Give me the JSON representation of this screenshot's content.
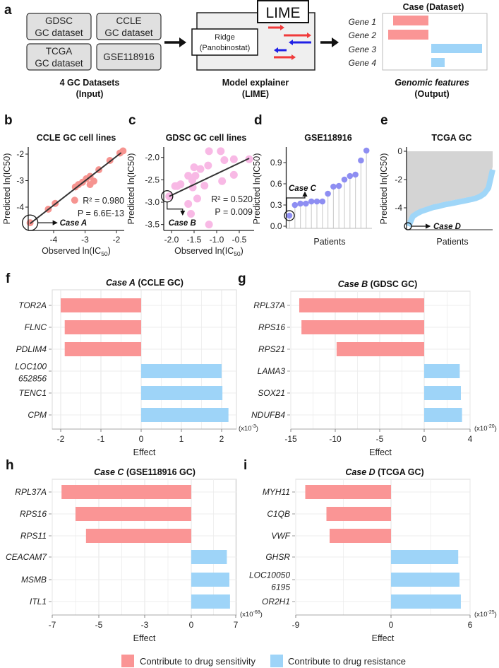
{
  "panel_labels": [
    "a",
    "b",
    "c",
    "d",
    "e",
    "f",
    "g",
    "h",
    "i"
  ],
  "panel_a": {
    "datasets": [
      [
        "GDSC",
        "GC dataset"
      ],
      [
        "CCLE",
        "GC dataset"
      ],
      [
        "TCGA",
        "GC dataset"
      ],
      [
        "GSE118916"
      ]
    ],
    "input_caption": [
      "4 GC Datasets",
      "(Input)"
    ],
    "lime_title": "LIME",
    "model_box": [
      "Ridge",
      "(Panobinostat)"
    ],
    "explainer_caption": [
      "Model explainer",
      "(LIME)"
    ],
    "output_title": "Case (Dataset)",
    "output_genes": [
      "Gene 1",
      "Gene 2",
      "Gene 3",
      "Gene 4"
    ],
    "output_caption": [
      "Genomic features",
      "(Output)"
    ]
  },
  "legend": {
    "sensitivity": "Contribute to drug sensitivity",
    "resistance": "Contribute to drug resistance"
  },
  "colors": {
    "sensitivity": "#fa9595",
    "resistance": "#9ed4f8",
    "ccle": "#f69490",
    "gdsc": "#f8b9e5",
    "gse": "#8e8ef2",
    "tcga": "#9fd6f8",
    "tcga_fill": "#d4d4d4"
  },
  "chart_data": [
    {
      "id": "b",
      "type": "scatter",
      "title": "CCLE GC cell lines",
      "xlabel": [
        "Observed ln(IC",
        "50",
        ")"
      ],
      "ylabel": "Predicted ln(IC50)",
      "xticks": [
        -4,
        -3,
        -2
      ],
      "yticks": [
        -2,
        -3,
        -4
      ],
      "xlim": [
        -4.85,
        -1.75
      ],
      "ylim": [
        -4.75,
        -1.8
      ],
      "points": [
        [
          -4.75,
          -4.59
        ],
        [
          -4.17,
          -4.08
        ],
        [
          -3.95,
          -3.86
        ],
        [
          -3.33,
          -3.74
        ],
        [
          -3.31,
          -3.24
        ],
        [
          -3.21,
          -3.15
        ],
        [
          -3.08,
          -3.06
        ],
        [
          -2.96,
          -2.93
        ],
        [
          -2.84,
          -2.84
        ],
        [
          -2.84,
          -3.15
        ],
        [
          -2.72,
          -3.02
        ],
        [
          -2.56,
          -2.59
        ],
        [
          -2.21,
          -2.24
        ],
        [
          -1.89,
          -1.96
        ],
        [
          -1.79,
          -1.88
        ]
      ],
      "fit": [
        [
          -4.75,
          -4.62
        ],
        [
          -1.85,
          -1.95
        ]
      ],
      "stats": [
        "R² = 0.980",
        "P = 6.6E-13"
      ],
      "case_label": "Case A"
    },
    {
      "id": "c",
      "type": "scatter",
      "title": "GDSC GC cell lines",
      "xlabel": [
        "Observed ln(IC",
        "50",
        ")"
      ],
      "ylabel": "Predicted ln(IC50)",
      "xticks": [
        "-2.0",
        "-1.5",
        "-1.0",
        "-0.5"
      ],
      "yticks": [
        "-2.0",
        "-2.5",
        "-3.0",
        "-3.5"
      ],
      "xlim": [
        -2.2,
        -0.25
      ],
      "ylim": [
        -3.6,
        -1.8
      ],
      "points": [
        [
          -2.05,
          -2.87
        ],
        [
          -1.92,
          -2.64
        ],
        [
          -1.87,
          -2.64
        ],
        [
          -1.8,
          -2.6
        ],
        [
          -1.63,
          -2.41
        ],
        [
          -1.63,
          -3.04
        ],
        [
          -1.57,
          -3.26
        ],
        [
          -1.5,
          -2.22
        ],
        [
          -1.47,
          -2.41
        ],
        [
          -1.54,
          -2.51
        ],
        [
          -1.53,
          -2.67
        ],
        [
          -1.43,
          -2.92
        ],
        [
          -1.36,
          -2.26
        ],
        [
          -1.27,
          -2.63
        ],
        [
          -1.19,
          -2.18
        ],
        [
          -1.17,
          -1.86
        ],
        [
          -1.17,
          -3.5
        ],
        [
          -0.91,
          -1.86
        ],
        [
          -0.83,
          -2.06
        ],
        [
          -0.88,
          -2.53
        ],
        [
          -0.62,
          -2.04
        ],
        [
          -0.62,
          -2.39
        ],
        [
          -0.28,
          -2.04
        ]
      ],
      "fit": [
        [
          -2.05,
          -2.87
        ],
        [
          -0.28,
          -2.02
        ]
      ],
      "stats": [
        "R² = 0.520",
        "P = 0.009"
      ],
      "case_label": "Case B"
    },
    {
      "id": "d",
      "type": "scatter",
      "title": "GSE118916",
      "xlabel": "Patients",
      "ylabel": "Predicted ln(IC50)",
      "yticks": [
        "0.0",
        "0.3",
        "0.6",
        "0.9"
      ],
      "ylim": [
        0,
        1.1
      ],
      "values": [
        0.15,
        0.3,
        0.32,
        0.32,
        0.35,
        0.35,
        0.35,
        0.46,
        0.56,
        0.57,
        0.66,
        0.71,
        0.73,
        0.93,
        1.07
      ],
      "case_label": "Case C"
    },
    {
      "id": "e",
      "type": "area",
      "title": "TCGA GC",
      "xlabel": "Patients",
      "ylabel": "Predicted ln(IC50)",
      "yticks": [
        0,
        -2,
        -4
      ],
      "ylim": [
        -5.3,
        0
      ],
      "values": [
        -5.3,
        -4.6,
        -4.4,
        -4.25,
        -4.15,
        -4.05,
        -3.95,
        -3.9,
        -3.82,
        -3.75,
        -3.7,
        -3.64,
        -3.58,
        -3.52,
        -3.46,
        -3.4,
        -3.32,
        -3.2,
        -3.0,
        -2.6,
        -1.3
      ],
      "case_label": "Case D"
    },
    {
      "id": "f",
      "type": "bar",
      "title_case": "Case A",
      "title_rest": " (CCLE GC)",
      "xlabel": "Effect",
      "unit_base": "(x10",
      "unit_exp": "-3",
      "unit_end": ")",
      "genes": [
        [
          "TOR2A"
        ],
        [
          "FLNC"
        ],
        [
          "PDLIM4"
        ],
        [
          "LOC100",
          "652856"
        ],
        [
          "TENC1"
        ],
        [
          "CPM"
        ]
      ],
      "values": [
        -2.0,
        -1.9,
        -1.9,
        2.0,
        2.02,
        2.17
      ],
      "xticks": [
        -2,
        -1,
        0,
        1,
        2
      ]
    },
    {
      "id": "g",
      "type": "bar",
      "title_case": "Case B",
      "title_rest": " (GDSC GC)",
      "xlabel": "Effect",
      "unit_base": "(x10",
      "unit_exp": "-20",
      "unit_end": ")",
      "genes": [
        [
          "RPL37A"
        ],
        [
          "RPS16"
        ],
        [
          "RPS21"
        ],
        [
          "LAMA3"
        ],
        [
          "SOX21"
        ],
        [
          "NDUFB4"
        ]
      ],
      "values": [
        -14.05,
        -13.8,
        -9.85,
        3.1,
        3.2,
        3.3
      ],
      "xticks": [
        -15,
        -10,
        -5,
        0,
        4
      ]
    },
    {
      "id": "h",
      "type": "bar",
      "title_case": "Case C",
      "title_rest": " (GSE118916 GC)",
      "xlabel": "Effect",
      "unit_base": "(x10",
      "unit_exp": "-68",
      "unit_end": ")",
      "genes": [
        [
          "RPL37A"
        ],
        [
          "RPS16"
        ],
        [
          "RPS11"
        ],
        [
          "CEACAM7"
        ],
        [
          "MSMB"
        ],
        [
          "ITL1"
        ]
      ],
      "values": [
        -6.6,
        -6.0,
        -5.55,
        5.6,
        6.0,
        6.1
      ],
      "xticks": [
        -7,
        -5,
        -3,
        0,
        7
      ]
    },
    {
      "id": "i",
      "type": "bar",
      "title_case": "Case D",
      "title_rest": " (TCGA GC)",
      "xlabel": "Effect",
      "unit_base": "(x10",
      "unit_exp": "-25",
      "unit_end": ")",
      "genes": [
        [
          "MYH11"
        ],
        [
          "C1QB"
        ],
        [
          "VWF"
        ],
        [
          "GHSR"
        ],
        [
          "LOC10050",
          "6195"
        ],
        [
          "OR2H1"
        ]
      ],
      "values": [
        -8.1,
        -6.1,
        -5.8,
        5.1,
        5.2,
        5.3
      ],
      "xticks": [
        -9,
        0,
        6
      ]
    }
  ]
}
